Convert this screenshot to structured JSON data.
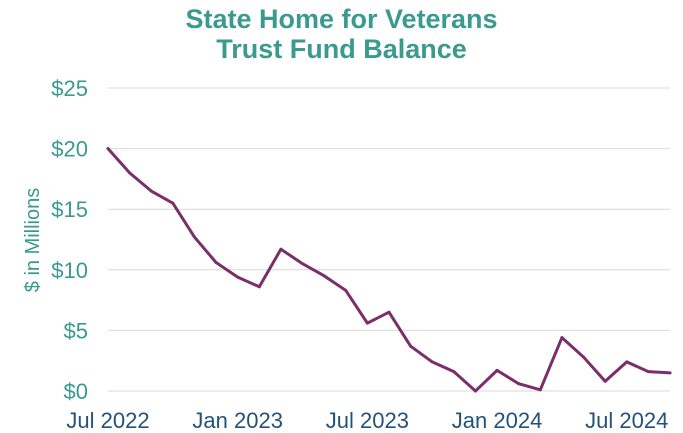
{
  "colors": {
    "title": "#3a9a8f",
    "ytick": "#3a9a8f",
    "ylabel": "#3a9a8f",
    "xtick": "#24527a",
    "line": "#7a2f6b",
    "grid": "#d9d9d9"
  },
  "chart_data": {
    "type": "line",
    "title": [
      "State Home for Veterans",
      "Trust Fund Balance"
    ],
    "xlabel": "",
    "ylabel": "$ in Millions",
    "ylim": [
      0,
      25
    ],
    "y_ticks": [
      0,
      5,
      10,
      15,
      20,
      25
    ],
    "y_tick_labels": [
      "$0",
      "$5",
      "$10",
      "$15",
      "$20",
      "$25"
    ],
    "x_tick_labels": [
      "Jul 2022",
      "Jan 2023",
      "Jul 2023",
      "Jan 2024",
      "Jul 2024"
    ],
    "x_tick_months": [
      "2022-07",
      "2023-01",
      "2023-07",
      "2024-01",
      "2024-07"
    ],
    "grid": true,
    "legend": "none",
    "series": [
      {
        "x": [
          "2022-07",
          "2022-08",
          "2022-09",
          "2022-10",
          "2022-11",
          "2022-12",
          "2023-01",
          "2023-02",
          "2023-03",
          "2023-04",
          "2023-05",
          "2023-06",
          "2023-07",
          "2023-08",
          "2023-09",
          "2023-10",
          "2023-11",
          "2023-12",
          "2024-01",
          "2024-02",
          "2024-03",
          "2024-04",
          "2024-05",
          "2024-06",
          "2024-07",
          "2024-08",
          "2024-09"
        ],
        "values": [
          20.0,
          18.0,
          16.5,
          15.5,
          12.7,
          10.6,
          9.4,
          8.6,
          11.7,
          10.5,
          9.5,
          8.3,
          5.6,
          6.5,
          3.7,
          2.4,
          1.6,
          0.0,
          1.7,
          0.6,
          0.1,
          4.4,
          2.8,
          0.8,
          2.4,
          1.6,
          1.5
        ]
      }
    ]
  }
}
